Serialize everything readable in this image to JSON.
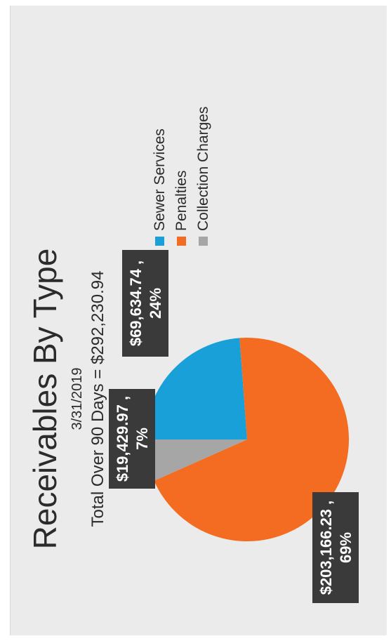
{
  "chart_data": {
    "type": "pie",
    "title": "Receivables By Type",
    "subtitle": "3/31/2019",
    "total_line": "Total Over 90 Days = $292,230.94",
    "legend_position": "right",
    "slices": [
      {
        "name": "Sewer Services",
        "value": 69634.74,
        "percent": 24,
        "color": "#1aa0d8",
        "label_value": "$69,634.74 ,",
        "label_pct": "24%"
      },
      {
        "name": "Penalties",
        "value": 203166.23,
        "percent": 69,
        "color": "#f36c21",
        "label_value": "$203,166.23 ,",
        "label_pct": "69%"
      },
      {
        "name": "Collection Charges",
        "value": 19429.97,
        "percent": 7,
        "color": "#a6a6a6",
        "label_value": "$19,429.97 ,",
        "label_pct": "7%"
      }
    ]
  }
}
